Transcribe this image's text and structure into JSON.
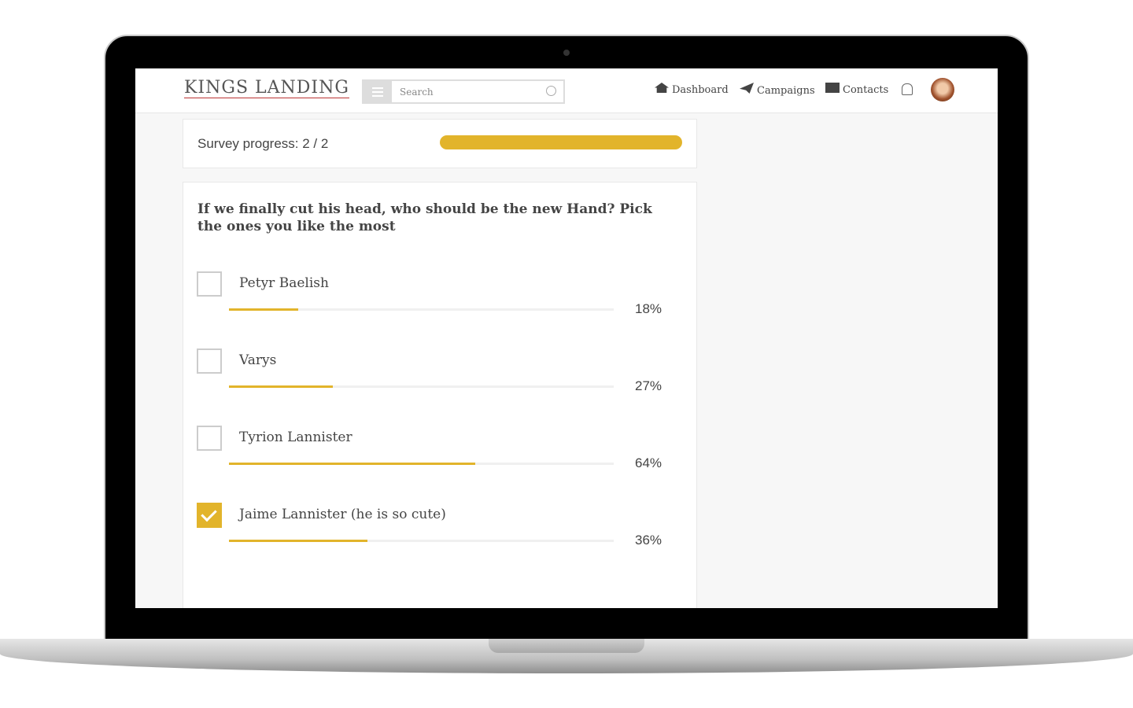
{
  "header": {
    "logo": "KINGS LANDING",
    "search_placeholder": "Search",
    "nav": [
      "Dashboard",
      "Campaigns",
      "Contacts"
    ]
  },
  "progress": {
    "text": "Survey progress: 2 / 2"
  },
  "question": {
    "text": "If we finally cut his head, who should be the new Hand? Pick the ones you like the most",
    "options": [
      "Petyr Baelish",
      "Varys",
      "Tyrion Lannister",
      "Jaime Lannister (he is so cute)"
    ],
    "values": [
      18,
      27,
      64,
      36
    ],
    "value_labels": [
      "18%",
      "27%",
      "64%",
      "36%"
    ],
    "checked": [
      false,
      false,
      false,
      true
    ],
    "color": "#e2b42b"
  }
}
